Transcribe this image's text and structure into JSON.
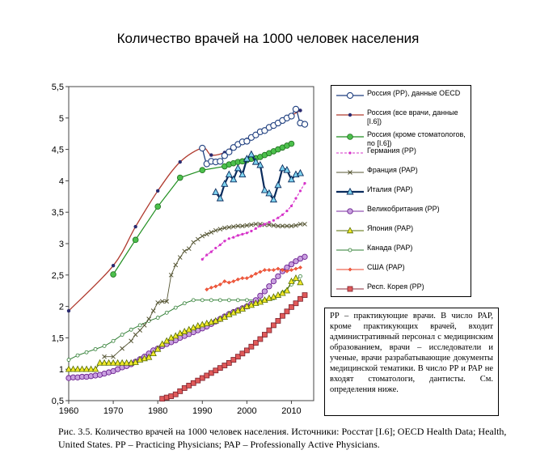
{
  "chart_data": {
    "type": "line",
    "title": "Количество врачей на 1000 человек населения",
    "xlabel": "",
    "ylabel": "",
    "xlim": [
      1960,
      2015
    ],
    "ylim": [
      0.5,
      5.5
    ],
    "x_ticks": [
      "1960",
      "1970",
      "1980",
      "1990",
      "2000",
      "2010"
    ],
    "y_ticks": [
      "0,5",
      "1",
      "1,5",
      "2",
      "2,5",
      "3",
      "3,5",
      "4",
      "4,5",
      "5",
      "5,5"
    ],
    "grid": false,
    "legend_position": "right",
    "series": [
      {
        "name": "Россия (РР), данные OECD",
        "color": "#1f3f7f",
        "marker": "circle-open",
        "line": "smooth",
        "x": [
          1990,
          1991,
          1992,
          1993,
          1994,
          1995,
          1996,
          1997,
          1998,
          1999,
          2000,
          2001,
          2002,
          2003,
          2004,
          2005,
          2006,
          2007,
          2008,
          2009,
          2010,
          2011,
          2012,
          2013
        ],
        "y": [
          4.52,
          4.27,
          4.31,
          4.3,
          4.31,
          4.4,
          4.46,
          4.53,
          4.58,
          4.62,
          4.63,
          4.69,
          4.73,
          4.78,
          4.8,
          4.85,
          4.88,
          4.92,
          4.96,
          5.0,
          5.03,
          5.14,
          4.92,
          4.9
        ]
      },
      {
        "name": "Россия (все врачи, данные [I.6])",
        "color": "#4a3f8f",
        "marker": "dot",
        "line": "straight",
        "x": [
          1960,
          1970,
          1975,
          1980,
          1985,
          1990,
          1992,
          1995,
          1997,
          1999,
          2000,
          2002,
          2004,
          2006,
          2008,
          2010,
          2012
        ],
        "y": [
          1.93,
          2.65,
          3.27,
          3.84,
          4.3,
          4.52,
          4.41,
          4.45,
          4.55,
          4.62,
          4.66,
          4.74,
          4.8,
          4.88,
          4.96,
          5.04,
          5.12
        ]
      },
      {
        "name": "Россия (кроме стоматологов, по [I.6])",
        "color": "#2ca02c",
        "marker": "circle-filled",
        "line": "straight",
        "x": [
          1970,
          1975,
          1980,
          1985,
          1990,
          1995,
          1996,
          1997,
          1998,
          1999,
          2000,
          2001,
          2002,
          2003,
          2004,
          2005,
          2006,
          2007,
          2008,
          2009,
          2010
        ],
        "y": [
          2.51,
          3.06,
          3.59,
          4.05,
          4.17,
          4.23,
          4.26,
          4.28,
          4.3,
          4.31,
          4.33,
          4.35,
          4.36,
          4.38,
          4.41,
          4.44,
          4.47,
          4.5,
          4.53,
          4.56,
          4.59
        ]
      },
      {
        "name": "Германия (РР)",
        "color": "#d633c9",
        "marker": "small-dot",
        "line": "dashed",
        "x": [
          1990,
          1991,
          1992,
          1993,
          1994,
          1995,
          1996,
          1997,
          1998,
          1999,
          2000,
          2001,
          2002,
          2003,
          2004,
          2005,
          2006,
          2007,
          2008,
          2009,
          2010,
          2011,
          2012,
          2013
        ],
        "y": [
          2.75,
          2.82,
          2.87,
          2.93,
          2.98,
          3.04,
          3.08,
          3.1,
          3.13,
          3.15,
          3.17,
          3.2,
          3.24,
          3.28,
          3.31,
          3.34,
          3.37,
          3.41,
          3.46,
          3.52,
          3.6,
          3.72,
          3.84,
          3.96
        ]
      },
      {
        "name": "Франция (РАР)",
        "color": "#666633",
        "marker": "x",
        "line": "straight",
        "x": [
          1968,
          1970,
          1972,
          1974,
          1975,
          1976,
          1977,
          1978,
          1979,
          1980,
          1981,
          1982,
          1983,
          1984,
          1985,
          1986,
          1987,
          1988,
          1989,
          1990,
          1991,
          1992,
          1993,
          1994,
          1995,
          1996,
          1997,
          1998,
          1999,
          2000,
          2001,
          2002,
          2003,
          2004,
          2005,
          2006,
          2007,
          2008,
          2009,
          2010,
          2011,
          2012,
          2013
        ],
        "y": [
          1.2,
          1.2,
          1.33,
          1.45,
          1.55,
          1.62,
          1.7,
          1.8,
          1.93,
          2.06,
          2.08,
          2.08,
          2.5,
          2.66,
          2.78,
          2.88,
          2.92,
          3.02,
          3.07,
          3.12,
          3.15,
          3.18,
          3.21,
          3.23,
          3.25,
          3.26,
          3.27,
          3.28,
          3.28,
          3.29,
          3.3,
          3.31,
          3.31,
          3.3,
          3.3,
          3.29,
          3.28,
          3.28,
          3.28,
          3.28,
          3.29,
          3.31,
          3.31
        ]
      },
      {
        "name": "Италия (РАР)",
        "color": "#0a2b5c",
        "marker": "triangle-cyan",
        "line": "thick",
        "x": [
          1993,
          1994,
          1995,
          1996,
          1997,
          1998,
          1999,
          2000,
          2001,
          2002,
          2003,
          2004,
          2005,
          2006,
          2007,
          2008,
          2009,
          2010,
          2011,
          2012
        ],
        "y": [
          3.82,
          3.72,
          3.95,
          4.1,
          4.02,
          4.2,
          4.1,
          4.35,
          4.42,
          4.3,
          4.25,
          3.85,
          3.8,
          3.7,
          3.93,
          4.2,
          4.17,
          4.02,
          4.1,
          4.12
        ]
      },
      {
        "name": "Великобритания (РР)",
        "color": "#7a2aa0",
        "marker": "circle-purple",
        "line": "straight",
        "x": [
          1960,
          1961,
          1962,
          1963,
          1964,
          1965,
          1966,
          1967,
          1968,
          1969,
          1970,
          1971,
          1972,
          1973,
          1974,
          1975,
          1976,
          1977,
          1978,
          1979,
          1980,
          1981,
          1982,
          1983,
          1984,
          1985,
          1986,
          1987,
          1988,
          1989,
          1990,
          1991,
          1992,
          1993,
          1994,
          1995,
          1996,
          1997,
          1998,
          1999,
          2000,
          2001,
          2002,
          2003,
          2004,
          2005,
          2006,
          2007,
          2008,
          2009,
          2010,
          2011,
          2012,
          2013
        ],
        "y": [
          0.86,
          0.87,
          0.87,
          0.88,
          0.88,
          0.89,
          0.9,
          0.91,
          0.93,
          0.95,
          0.97,
          1.0,
          1.03,
          1.05,
          1.08,
          1.12,
          1.16,
          1.2,
          1.25,
          1.3,
          1.33,
          1.37,
          1.4,
          1.43,
          1.46,
          1.5,
          1.53,
          1.56,
          1.59,
          1.62,
          1.65,
          1.68,
          1.72,
          1.76,
          1.8,
          1.84,
          1.88,
          1.91,
          1.94,
          1.97,
          2.0,
          2.04,
          2.1,
          2.17,
          2.24,
          2.32,
          2.4,
          2.48,
          2.56,
          2.62,
          2.67,
          2.72,
          2.76,
          2.79
        ]
      },
      {
        "name": "Япония (РАР)",
        "color": "#556b00",
        "marker": "triangle-yellow",
        "line": "straight",
        "x": [
          1960,
          1961,
          1962,
          1963,
          1964,
          1965,
          1966,
          1967,
          1968,
          1969,
          1970,
          1971,
          1972,
          1973,
          1974,
          1975,
          1976,
          1977,
          1978,
          1979,
          1980,
          1981,
          1982,
          1983,
          1984,
          1985,
          1986,
          1987,
          1988,
          1989,
          1990,
          1991,
          1992,
          1993,
          1994,
          1995,
          1996,
          1997,
          1998,
          1999,
          2000,
          2001,
          2002,
          2003,
          2004,
          2005,
          2006,
          2007,
          2008,
          2009,
          2010,
          2011,
          2012
        ],
        "y": [
          1.0,
          1.0,
          1.0,
          1.0,
          1.0,
          1.0,
          1.0,
          1.1,
          1.1,
          1.1,
          1.1,
          1.1,
          1.1,
          1.1,
          1.1,
          1.11,
          1.15,
          1.17,
          1.19,
          1.25,
          1.32,
          1.4,
          1.45,
          1.5,
          1.53,
          1.57,
          1.6,
          1.63,
          1.66,
          1.69,
          1.71,
          1.73,
          1.75,
          1.77,
          1.8,
          1.83,
          1.87,
          1.9,
          1.93,
          1.96,
          2.0,
          2.02,
          2.05,
          2.07,
          2.1,
          2.13,
          2.15,
          2.18,
          2.21,
          2.25,
          2.4,
          2.45,
          2.38
        ]
      },
      {
        "name": "Канада (РАР)",
        "color": "#2e7d32",
        "marker": "circle-green-small",
        "line": "straight",
        "x": [
          1960,
          1962,
          1964,
          1966,
          1968,
          1970,
          1972,
          1974,
          1976,
          1978,
          1980,
          1982,
          1984,
          1986,
          1988,
          1990,
          1992,
          1994,
          1996,
          1998,
          2000,
          2002,
          2004,
          2006,
          2008,
          2010,
          2012
        ],
        "y": [
          1.15,
          1.22,
          1.27,
          1.32,
          1.37,
          1.45,
          1.55,
          1.63,
          1.7,
          1.77,
          1.82,
          1.9,
          1.98,
          2.05,
          2.1,
          2.1,
          2.1,
          2.1,
          2.1,
          2.1,
          2.1,
          2.1,
          2.1,
          2.13,
          2.22,
          2.35,
          2.48
        ]
      },
      {
        "name": "США (РАР)",
        "color": "#e8432a",
        "marker": "diamond-red",
        "line": "straight",
        "x": [
          1991,
          1992,
          1993,
          1994,
          1995,
          1996,
          1997,
          1998,
          1999,
          2000,
          2001,
          2002,
          2003,
          2004,
          2005,
          2006,
          2007,
          2008,
          2009,
          2010,
          2011,
          2012
        ],
        "y": [
          2.27,
          2.3,
          2.32,
          2.35,
          2.4,
          2.38,
          2.4,
          2.43,
          2.45,
          2.45,
          2.48,
          2.52,
          2.55,
          2.58,
          2.58,
          2.58,
          2.6,
          2.58,
          2.56,
          2.58,
          2.6,
          2.62
        ]
      },
      {
        "name": "Респ. Корея (РР)",
        "color": "#8b2b3a",
        "marker": "square-red",
        "line": "straight",
        "x": [
          1981,
          1982,
          1983,
          1984,
          1985,
          1986,
          1987,
          1988,
          1989,
          1990,
          1991,
          1992,
          1993,
          1994,
          1995,
          1996,
          1997,
          1998,
          1999,
          2000,
          2001,
          2002,
          2003,
          2004,
          2005,
          2006,
          2007,
          2008,
          2009,
          2010,
          2011,
          2012,
          2013
        ],
        "y": [
          0.53,
          0.55,
          0.57,
          0.6,
          0.65,
          0.7,
          0.74,
          0.78,
          0.82,
          0.86,
          0.9,
          0.94,
          0.98,
          1.02,
          1.06,
          1.1,
          1.15,
          1.2,
          1.25,
          1.3,
          1.36,
          1.42,
          1.48,
          1.55,
          1.62,
          1.7,
          1.77,
          1.85,
          1.92,
          1.99,
          2.05,
          2.12,
          2.18
        ]
      }
    ]
  },
  "note": "РР – практикующие врачи. В число РАР, кроме практикующих врачей, входит административный персонал с медицинским образованием, врачи – исследователи и ученые, врачи разрабатывающие документы медицинской тематики. В число РР и РАР не входят стоматологи, дантисты. См. определения ниже.",
  "caption": "Рис. 3.5. Количество врачей на 1000 человек населения. Источники: Росстат [I.6]; OECD Health Data; Health, United States. РР – Practicing Physicians; РАР – Professionally Active Physicians."
}
